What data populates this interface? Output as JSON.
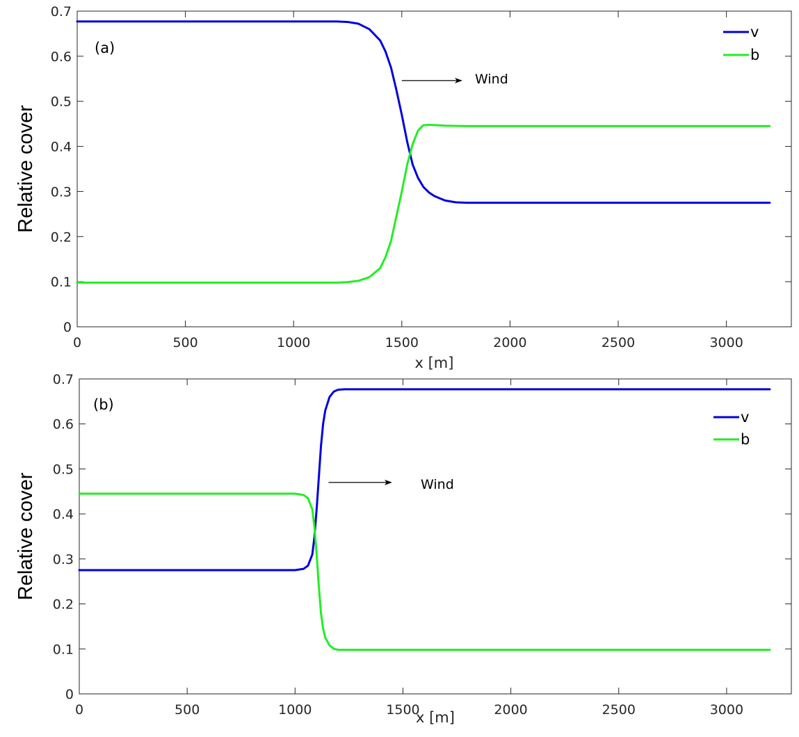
{
  "chart_data": [
    {
      "type": "line",
      "panel_label": "(a)",
      "xlabel": "x [m]",
      "ylabel": "Relative cover",
      "xlim": [
        0,
        3300
      ],
      "ylim": [
        0,
        0.7
      ],
      "xticks": [
        0,
        500,
        1000,
        1500,
        2000,
        2500,
        3000
      ],
      "xtick_labels": [
        "0",
        "500",
        "1000",
        "1500",
        "2000",
        "2500",
        "3000"
      ],
      "yticks": [
        0,
        0.1,
        0.2,
        0.3,
        0.4,
        0.5,
        0.6,
        0.7
      ],
      "ytick_labels": [
        "0",
        "0.1",
        "0.2",
        "0.3",
        "0.4",
        "0.5",
        "0.6",
        "0.7"
      ],
      "grid": false,
      "legend_position": "top-right",
      "annotation": {
        "text": "Wind",
        "arrow_from": [
          1500,
          0.546
        ],
        "arrow_to": [
          1780,
          0.546
        ]
      },
      "series": [
        {
          "name": "v",
          "color": "#0000dd",
          "x": [
            0,
            1200,
            1250,
            1300,
            1350,
            1400,
            1425,
            1450,
            1475,
            1500,
            1525,
            1550,
            1575,
            1600,
            1625,
            1650,
            1700,
            1750,
            1800,
            3200
          ],
          "y": [
            0.677,
            0.677,
            0.676,
            0.672,
            0.66,
            0.635,
            0.61,
            0.575,
            0.525,
            0.47,
            0.41,
            0.36,
            0.33,
            0.31,
            0.298,
            0.29,
            0.28,
            0.276,
            0.275,
            0.275
          ]
        },
        {
          "name": "b",
          "color": "#22ee22",
          "x": [
            0,
            1200,
            1250,
            1300,
            1350,
            1400,
            1425,
            1450,
            1475,
            1500,
            1525,
            1550,
            1575,
            1600,
            1625,
            1700,
            1800,
            3200
          ],
          "y": [
            0.098,
            0.098,
            0.099,
            0.102,
            0.11,
            0.13,
            0.155,
            0.19,
            0.245,
            0.3,
            0.36,
            0.405,
            0.435,
            0.447,
            0.448,
            0.446,
            0.445,
            0.445
          ]
        }
      ]
    },
    {
      "type": "line",
      "panel_label": "(b)",
      "xlabel": "x [m]",
      "ylabel": "Relative cover",
      "xlim": [
        0,
        3300
      ],
      "ylim": [
        0,
        0.7
      ],
      "xticks": [
        0,
        500,
        1000,
        1500,
        2000,
        2500,
        3000
      ],
      "xtick_labels": [
        "0",
        "500",
        "1000",
        "1500",
        "2000",
        "2500",
        "3000"
      ],
      "yticks": [
        0,
        0.1,
        0.2,
        0.3,
        0.4,
        0.5,
        0.6,
        0.7
      ],
      "ytick_labels": [
        "0",
        "0.1",
        "0.2",
        "0.3",
        "0.4",
        "0.5",
        "0.6",
        "0.7"
      ],
      "grid": false,
      "legend_position": "top-right",
      "annotation": {
        "text": "Wind",
        "arrow_from": [
          1155,
          0.47
        ],
        "arrow_to": [
          1450,
          0.47
        ]
      },
      "series": [
        {
          "name": "v",
          "color": "#0000dd",
          "x": [
            0,
            1000,
            1040,
            1060,
            1080,
            1090,
            1100,
            1110,
            1120,
            1130,
            1140,
            1160,
            1180,
            1200,
            1230,
            1260,
            3200
          ],
          "y": [
            0.275,
            0.275,
            0.278,
            0.285,
            0.31,
            0.35,
            0.41,
            0.48,
            0.55,
            0.6,
            0.63,
            0.66,
            0.672,
            0.676,
            0.677,
            0.677,
            0.677
          ]
        },
        {
          "name": "b",
          "color": "#22ee22",
          "x": [
            0,
            1000,
            1040,
            1060,
            1080,
            1090,
            1100,
            1110,
            1120,
            1130,
            1140,
            1160,
            1180,
            1200,
            1230,
            1260,
            3200
          ],
          "y": [
            0.445,
            0.445,
            0.442,
            0.435,
            0.41,
            0.37,
            0.31,
            0.24,
            0.18,
            0.145,
            0.125,
            0.108,
            0.1,
            0.098,
            0.098,
            0.098,
            0.098
          ]
        }
      ]
    }
  ]
}
